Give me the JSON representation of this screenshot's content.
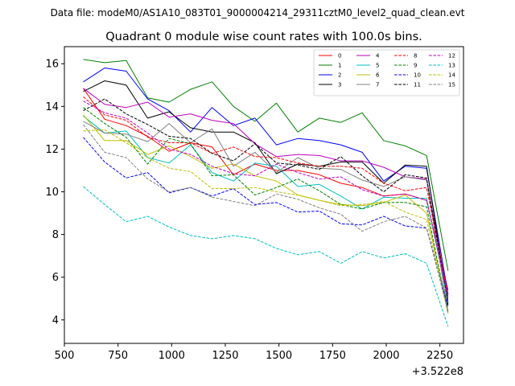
{
  "chart_data": {
    "type": "line",
    "suptitle": "Data file: modeM0/AS1A10_083T01_9000004214_29311cztM0_level2_quad_clean.evt",
    "title": "Quadrant 0 module wise count rates with 100.0s bins.",
    "xlabel": "",
    "ylabel": "",
    "x_offset_label": "+3.522e8",
    "xlim": [
      500,
      2360
    ],
    "ylim": [
      2.9,
      16.8
    ],
    "x_ticks": [
      500,
      750,
      1000,
      1250,
      1500,
      1750,
      2000,
      2250
    ],
    "y_ticks": [
      4,
      6,
      8,
      10,
      12,
      14,
      16
    ],
    "legend_position": "top-right",
    "x": [
      588,
      688,
      788,
      888,
      988,
      1088,
      1188,
      1288,
      1388,
      1488,
      1588,
      1688,
      1788,
      1888,
      1988,
      2088,
      2188,
      2288
    ],
    "series": [
      {
        "name": "0",
        "color": "#ff0000",
        "dash": "solid",
        "values": [
          14.85,
          13.4,
          13.1,
          12.6,
          11.9,
          12.3,
          12.1,
          10.8,
          11.3,
          11.0,
          11.0,
          10.8,
          10.4,
          10.2,
          9.8,
          9.9,
          9.6,
          5.4
        ]
      },
      {
        "name": "1",
        "color": "#008000",
        "dash": "solid",
        "values": [
          16.2,
          16.05,
          16.15,
          14.4,
          14.2,
          14.8,
          15.15,
          14.0,
          13.3,
          14.15,
          12.8,
          13.45,
          13.25,
          13.7,
          12.4,
          12.15,
          11.7,
          6.3
        ]
      },
      {
        "name": "2",
        "color": "#0000ff",
        "dash": "solid",
        "values": [
          15.15,
          15.8,
          15.65,
          14.35,
          13.8,
          12.8,
          13.95,
          13.1,
          13.45,
          12.2,
          12.5,
          12.4,
          12.2,
          11.85,
          10.5,
          11.2,
          11.1,
          5.2
        ]
      },
      {
        "name": "3",
        "color": "#000000",
        "dash": "solid",
        "values": [
          14.7,
          15.2,
          15.0,
          13.45,
          13.75,
          13.0,
          12.8,
          12.8,
          12.3,
          10.85,
          11.3,
          11.2,
          11.4,
          11.4,
          10.4,
          11.25,
          11.2,
          4.7
        ]
      },
      {
        "name": "4",
        "color": "#bf00bf",
        "dash": "solid",
        "values": [
          14.85,
          14.1,
          13.95,
          14.2,
          13.5,
          13.65,
          13.35,
          13.2,
          12.25,
          11.65,
          11.75,
          11.7,
          11.45,
          11.45,
          11.15,
          10.7,
          10.6,
          5.0
        ]
      },
      {
        "name": "5",
        "color": "#00bfbf",
        "dash": "solid",
        "values": [
          13.55,
          12.75,
          12.85,
          11.6,
          11.35,
          12.2,
          10.9,
          10.5,
          11.35,
          11.2,
          10.25,
          10.35,
          9.8,
          9.2,
          9.75,
          9.7,
          9.7,
          4.9
        ]
      },
      {
        "name": "6",
        "color": "#bfbf00",
        "dash": "solid",
        "values": [
          13.6,
          12.4,
          12.4,
          11.75,
          12.15,
          11.65,
          11.1,
          11.3,
          10.75,
          10.5,
          9.85,
          9.6,
          9.4,
          9.35,
          9.5,
          9.85,
          9.0,
          4.4
        ]
      },
      {
        "name": "7",
        "color": "#808080",
        "dash": "solid",
        "values": [
          13.3,
          12.75,
          12.7,
          12.35,
          13.2,
          12.3,
          12.95,
          11.2,
          11.85,
          10.9,
          11.6,
          11.1,
          11.05,
          10.55,
          10.25,
          10.7,
          10.55,
          4.4
        ]
      },
      {
        "name": "8",
        "color": "#ff0000",
        "dash": "dashed",
        "values": [
          14.45,
          13.6,
          13.35,
          12.55,
          12.3,
          12.3,
          11.8,
          12.1,
          11.65,
          11.6,
          11.35,
          11.2,
          11.2,
          11.1,
          10.4,
          10.05,
          10.2,
          5.2
        ]
      },
      {
        "name": "9",
        "color": "#008000",
        "dash": "dashed",
        "values": [
          13.95,
          13.2,
          12.55,
          11.3,
          12.5,
          12.25,
          10.75,
          10.8,
          9.85,
          10.2,
          10.6,
          10.05,
          9.4,
          9.2,
          9.5,
          9.5,
          9.3,
          4.3
        ]
      },
      {
        "name": "10",
        "color": "#0000ff",
        "dash": "dashed",
        "values": [
          12.55,
          11.4,
          10.65,
          10.9,
          9.95,
          10.2,
          9.8,
          10.15,
          9.4,
          9.5,
          9.05,
          9.1,
          8.5,
          8.45,
          8.85,
          8.4,
          8.3,
          4.6
        ]
      },
      {
        "name": "11",
        "color": "#000000",
        "dash": "dashed",
        "values": [
          13.8,
          14.35,
          13.65,
          13.15,
          12.6,
          12.5,
          11.8,
          11.45,
          12.25,
          11.35,
          11.25,
          11.05,
          11.65,
          10.75,
          10.0,
          10.8,
          10.65,
          4.8
        ]
      },
      {
        "name": "12",
        "color": "#bf00bf",
        "dash": "dashed",
        "values": [
          14.25,
          13.7,
          13.45,
          12.75,
          12.0,
          11.75,
          11.2,
          10.85,
          10.75,
          11.3,
          10.9,
          10.6,
          10.7,
          10.1,
          9.8,
          9.9,
          9.6,
          5.1
        ]
      },
      {
        "name": "13",
        "color": "#00bfbf",
        "dash": "dashed",
        "values": [
          10.25,
          9.4,
          8.6,
          8.85,
          8.35,
          7.95,
          7.8,
          7.95,
          7.8,
          7.35,
          7.05,
          7.2,
          6.65,
          7.2,
          6.9,
          7.1,
          6.65,
          3.7
        ]
      },
      {
        "name": "14",
        "color": "#bfbf00",
        "dash": "dashed",
        "values": [
          12.85,
          12.9,
          12.3,
          11.6,
          11.1,
          10.95,
          10.15,
          10.15,
          10.2,
          10.0,
          9.85,
          9.6,
          9.35,
          9.4,
          9.55,
          9.05,
          8.7,
          4.3
        ]
      },
      {
        "name": "15",
        "color": "#808080",
        "dash": "dashed",
        "values": [
          13.15,
          11.85,
          11.6,
          10.6,
          10.0,
          10.2,
          9.75,
          9.55,
          9.35,
          9.9,
          9.65,
          9.25,
          8.95,
          8.15,
          8.6,
          8.85,
          8.3,
          4.4
        ]
      }
    ]
  }
}
